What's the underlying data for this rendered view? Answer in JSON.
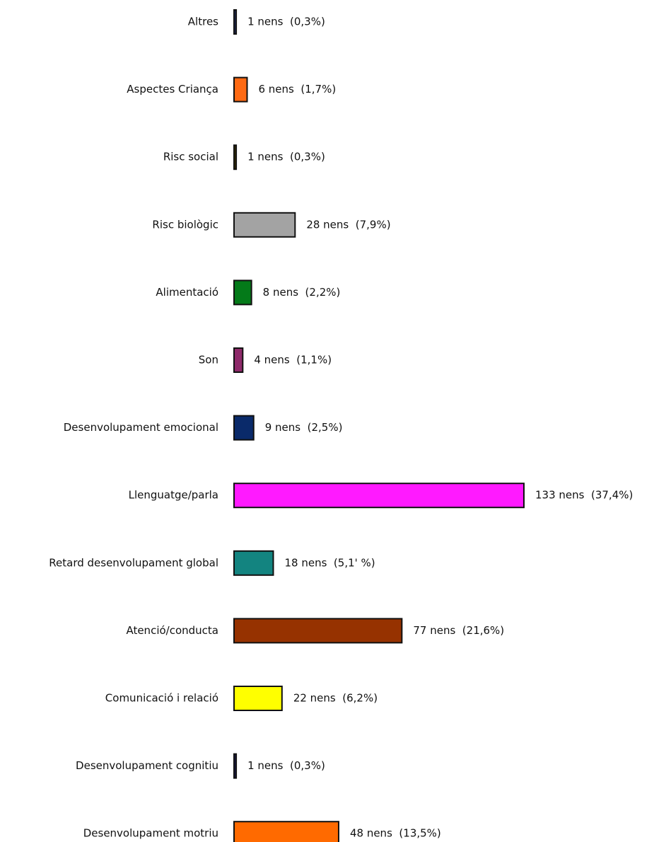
{
  "chart_data": {
    "type": "bar",
    "orientation": "horizontal",
    "categories": [
      "Altres",
      "Aspectes Criança",
      "Risc social",
      "Risc biològic",
      "Alimentació",
      "Son",
      "Desenvolupament emocional",
      "Llenguatge/parla",
      "Retard desenvolupament global",
      "Atenció/conducta",
      "Comunicació i relació",
      "Desenvolupament cognitiu",
      "Desenvolupament motriu"
    ],
    "values": [
      1,
      6,
      1,
      28,
      8,
      4,
      9,
      133,
      18,
      77,
      22,
      1,
      48
    ],
    "value_labels": [
      "1 nens  (0,3%)",
      "6 nens  (1,7%)",
      "1 nens  (0,3%)",
      "28 nens  (7,9%)",
      "8 nens  (2,2%)",
      "4 nens  (1,1%)",
      "9 nens  (2,5%)",
      "133 nens  (37,4%)",
      "18 nens  (5,1' %)",
      "77 nens  (21,6%)",
      "22 nens  (6,2%)",
      "1 nens  (0,3%)",
      "48 nens  (13,5%)"
    ],
    "colors": [
      "#1f2a5a",
      "#ff6a13",
      "#3a3000",
      "#a3a3a3",
      "#047a19",
      "#8e2a6a",
      "#0a2a6a",
      "#ff1aff",
      "#138480",
      "#963200",
      "#ffff00",
      "#1a1a4a",
      "#ff6a00"
    ],
    "xlim": [
      0,
      133
    ],
    "grid": false,
    "legend": "none",
    "title": "",
    "xlabel": "",
    "ylabel": ""
  }
}
